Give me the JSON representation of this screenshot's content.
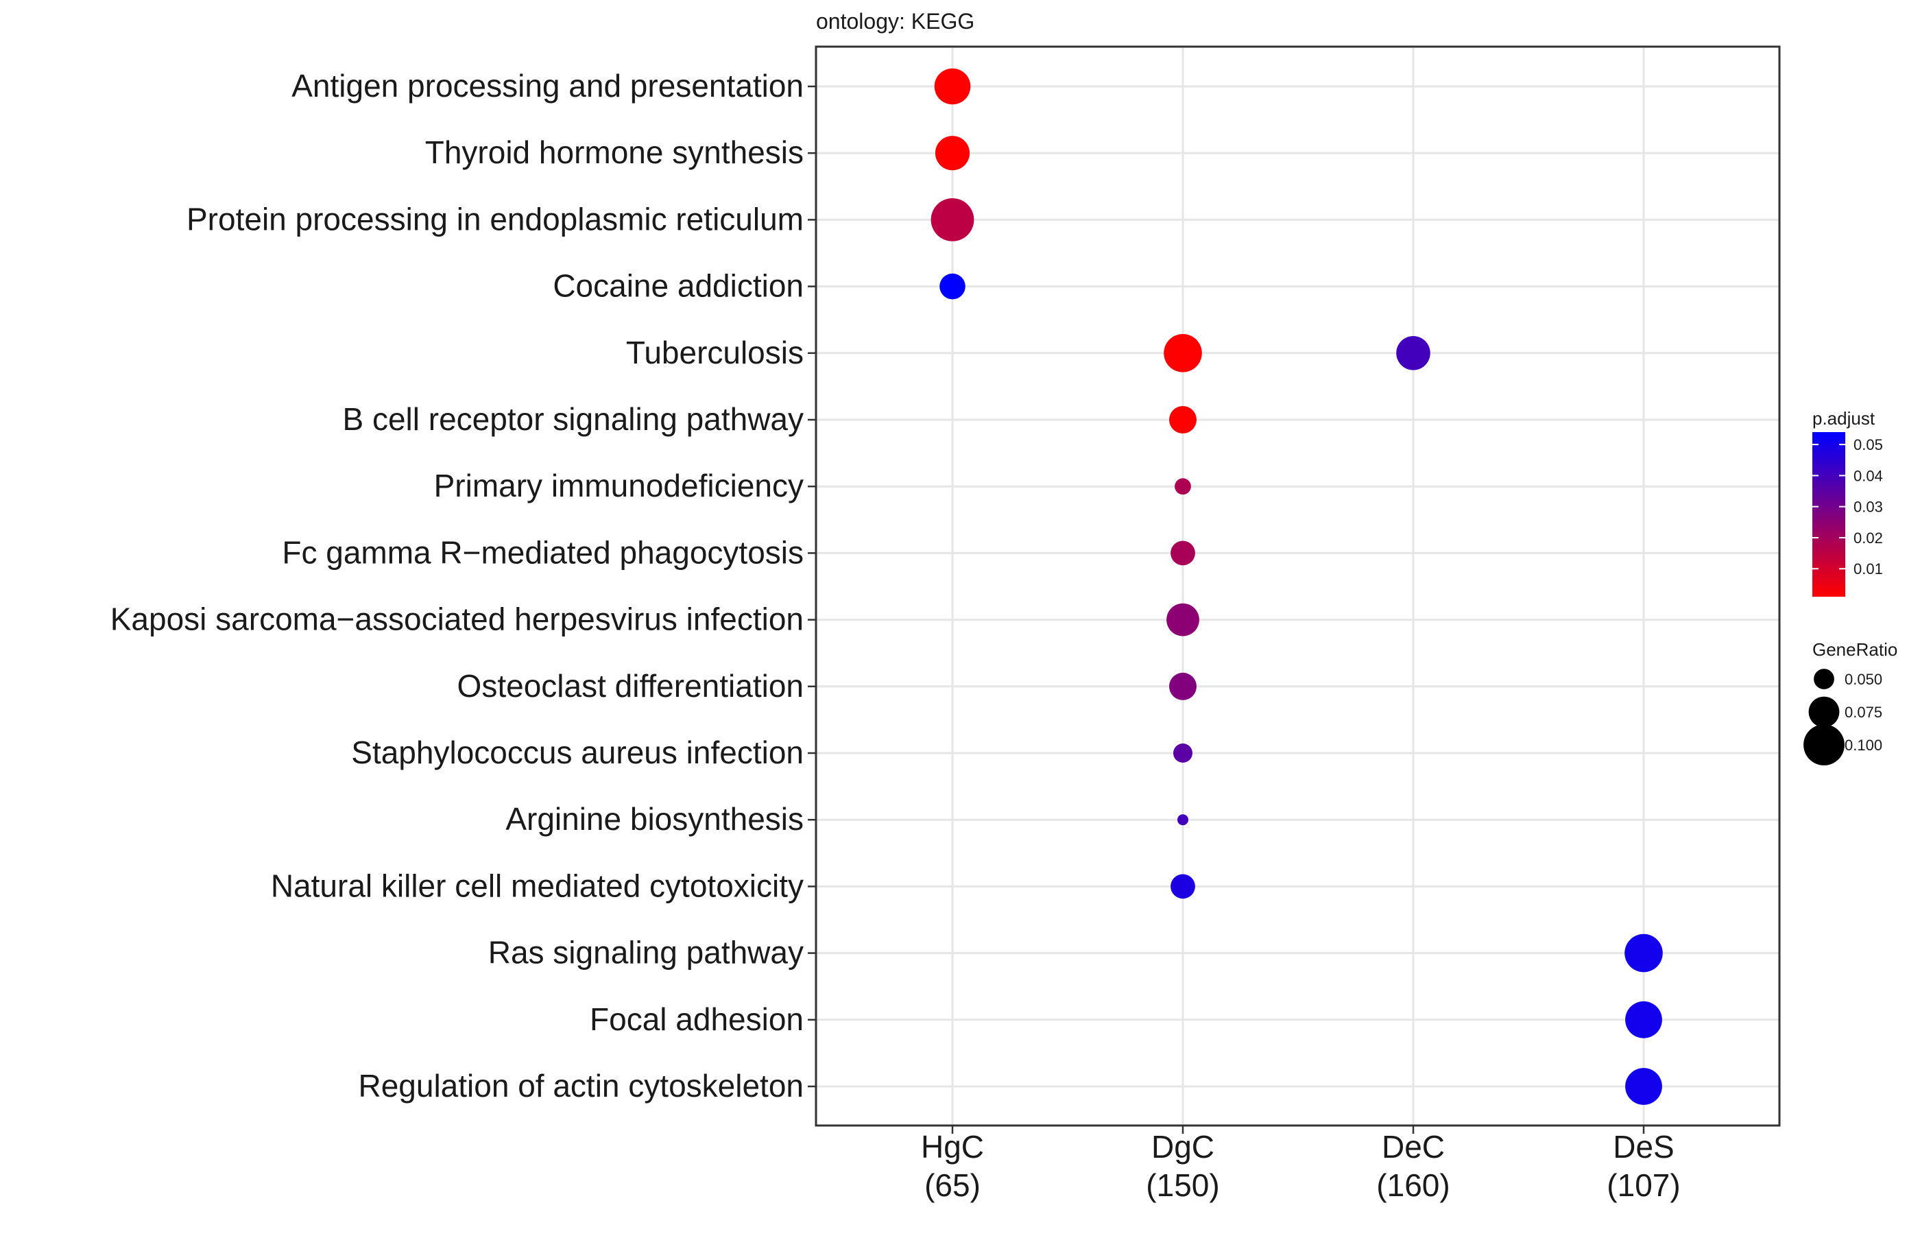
{
  "chart_data": {
    "type": "scatter",
    "title": "ontology: KEGG",
    "x_categories": [
      {
        "name": "HgC",
        "count": "(65)"
      },
      {
        "name": "DgC",
        "count": "(150)"
      },
      {
        "name": "DeC",
        "count": "(160)"
      },
      {
        "name": "DeS",
        "count": "(107)"
      }
    ],
    "y_categories": [
      "Antigen processing and presentation",
      "Thyroid hormone synthesis",
      "Protein processing in endoplasmic reticulum",
      "Cocaine addiction",
      "Tuberculosis",
      "B cell receptor signaling pathway",
      "Primary immunodeficiency",
      "Fc gamma R−mediated phagocytosis",
      "Kaposi sarcoma−associated herpesvirus infection",
      "Osteoclast differentiation",
      "Staphylococcus aureus infection",
      "Arginine biosynthesis",
      "Natural killer cell mediated cytotoxicity",
      "Ras signaling pathway",
      "Focal adhesion",
      "Regulation of actin cytoskeleton"
    ],
    "points": [
      {
        "x": "HgC",
        "y": "Antigen processing and presentation",
        "gene_ratio": 0.088,
        "p_adjust": 0.001
      },
      {
        "x": "HgC",
        "y": "Thyroid hormone synthesis",
        "gene_ratio": 0.084,
        "p_adjust": 0.001
      },
      {
        "x": "HgC",
        "y": "Protein processing in endoplasmic reticulum",
        "gene_ratio": 0.105,
        "p_adjust": 0.015
      },
      {
        "x": "HgC",
        "y": "Cocaine addiction",
        "gene_ratio": 0.063,
        "p_adjust": 0.054
      },
      {
        "x": "DgC",
        "y": "Tuberculosis",
        "gene_ratio": 0.093,
        "p_adjust": 0.001
      },
      {
        "x": "DeC",
        "y": "Tuberculosis",
        "gene_ratio": 0.083,
        "p_adjust": 0.04
      },
      {
        "x": "DgC",
        "y": "B cell receptor signaling pathway",
        "gene_ratio": 0.067,
        "p_adjust": 0.001
      },
      {
        "x": "DgC",
        "y": "Primary immunodeficiency",
        "gene_ratio": 0.04,
        "p_adjust": 0.018
      },
      {
        "x": "DgC",
        "y": "Fc gamma R−mediated phagocytosis",
        "gene_ratio": 0.06,
        "p_adjust": 0.019
      },
      {
        "x": "DgC",
        "y": "Kaposi sarcoma−associated herpesvirus infection",
        "gene_ratio": 0.08,
        "p_adjust": 0.025
      },
      {
        "x": "DgC",
        "y": "Osteoclast differentiation",
        "gene_ratio": 0.067,
        "p_adjust": 0.027
      },
      {
        "x": "DgC",
        "y": "Staphylococcus aureus infection",
        "gene_ratio": 0.047,
        "p_adjust": 0.035
      },
      {
        "x": "DgC",
        "y": "Arginine biosynthesis",
        "gene_ratio": 0.027,
        "p_adjust": 0.04
      },
      {
        "x": "DgC",
        "y": "Natural killer cell mediated cytotoxicity",
        "gene_ratio": 0.06,
        "p_adjust": 0.048
      },
      {
        "x": "DeS",
        "y": "Ras signaling pathway",
        "gene_ratio": 0.093,
        "p_adjust": 0.05
      },
      {
        "x": "DeS",
        "y": "Focal adhesion",
        "gene_ratio": 0.09,
        "p_adjust": 0.05
      },
      {
        "x": "DeS",
        "y": "Regulation of actin cytoskeleton",
        "gene_ratio": 0.09,
        "p_adjust": 0.05
      }
    ],
    "color_legend": {
      "title": "p.adjust",
      "ticks": [
        "0.05",
        "0.04",
        "0.03",
        "0.02",
        "0.01"
      ],
      "range": [
        0.001,
        0.054
      ],
      "low_color": "#ff0000",
      "high_color": "#0000ff"
    },
    "size_legend": {
      "title": "GeneRatio",
      "entries": [
        {
          "value": 0.05,
          "label": "0.050"
        },
        {
          "value": 0.075,
          "label": "0.075"
        },
        {
          "value": 0.1,
          "label": "0.100"
        }
      ]
    },
    "grid": true,
    "legend_position": "right"
  }
}
